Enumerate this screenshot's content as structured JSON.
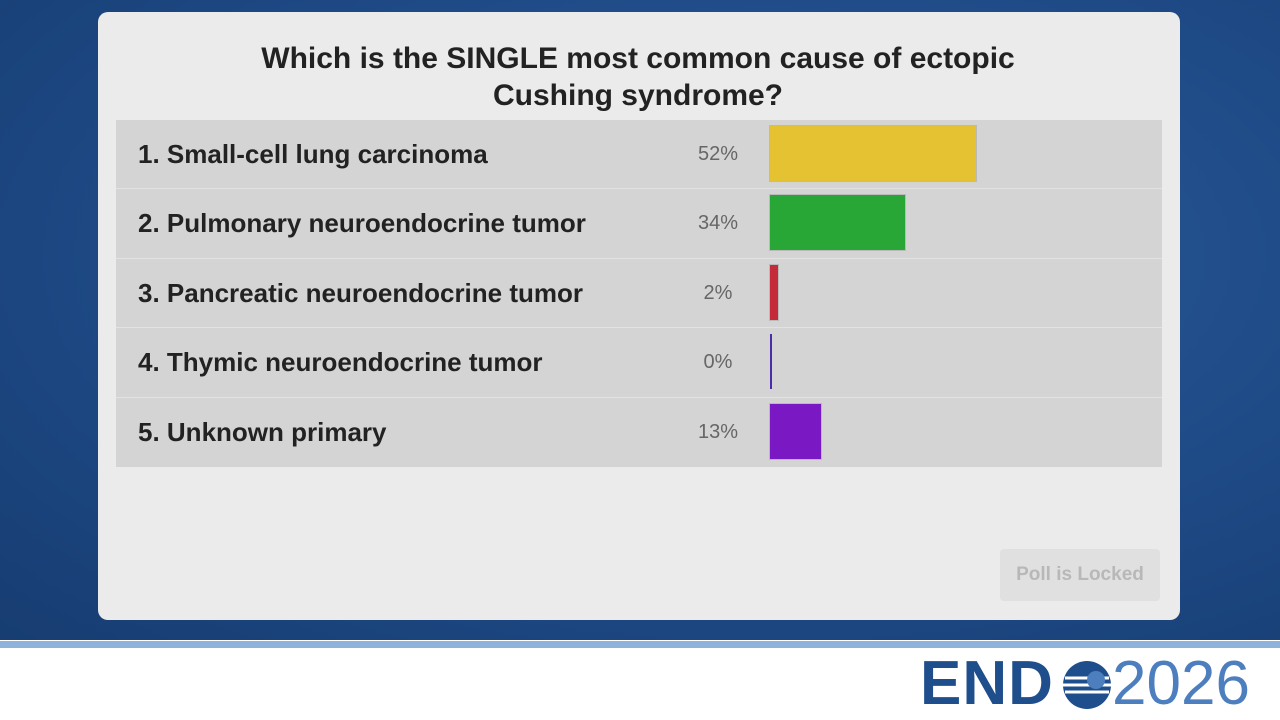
{
  "poll": {
    "question": "Which is the SINGLE most common cause of ectopic Cushing syndrome?",
    "options": [
      "1. Small-cell lung carcinoma",
      "2. Pulmonary neuroendocrine tumor",
      "3. Pancreatic neuroendocrine tumor",
      "4. Thymic neuroendocrine tumor",
      "5. Unknown primary"
    ],
    "values": [
      52,
      34,
      2,
      0,
      13
    ],
    "value_labels": [
      "52%",
      "34%",
      "2%",
      "0%",
      "13%"
    ],
    "colors": [
      "#e5c232",
      "#28a636",
      "#c42a3a",
      "#4a2dab",
      "#7a18c4"
    ],
    "scale_max": 100,
    "button": "Poll is Locked"
  },
  "footer": {
    "logo_left": "END",
    "logo_right": "2026"
  }
}
